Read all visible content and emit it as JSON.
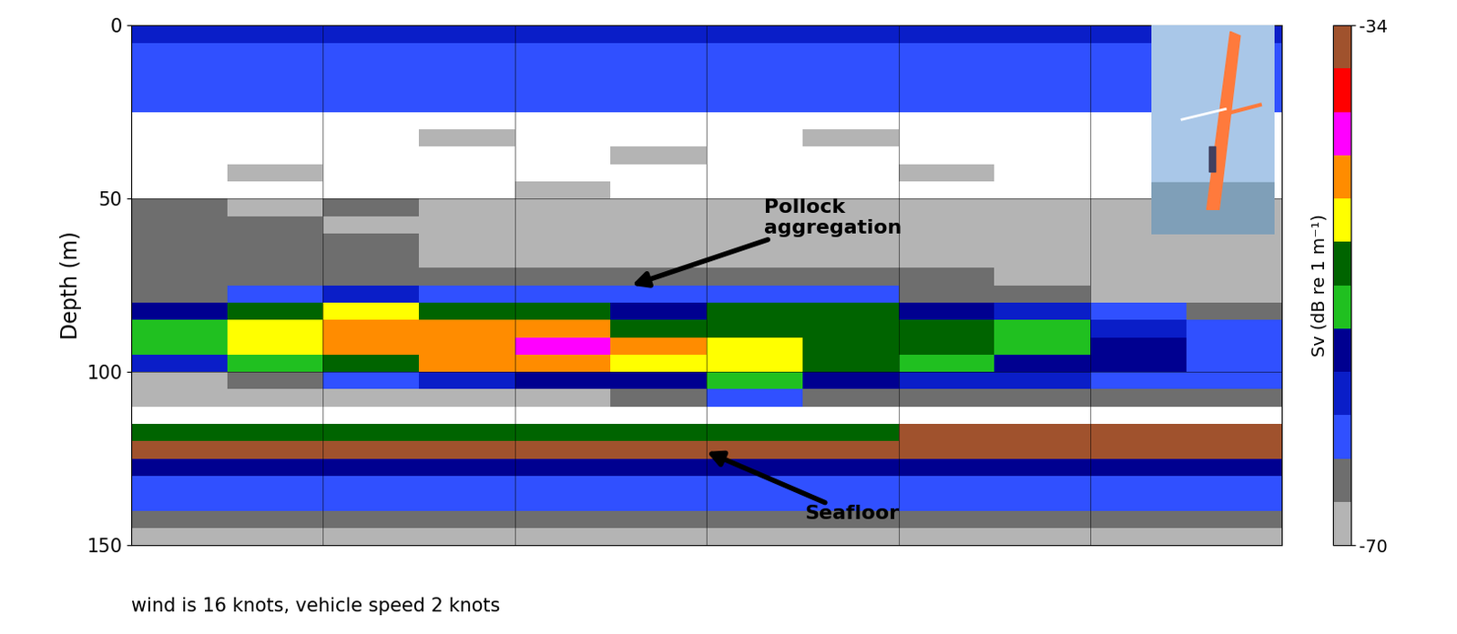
{
  "chart_data": {
    "type": "heatmap",
    "ylabel": "Depth (m)",
    "ylim": [
      150,
      0
    ],
    "yticks": [
      0,
      50,
      100,
      150
    ],
    "grid": true,
    "tick_labels": "y",
    "annotations": [
      "Pollock\naggregation",
      "Seafloor"
    ],
    "caption": "wind is 16 knots, vehicle speed 2 knots",
    "depth_bins": [
      0,
      5,
      10,
      15,
      20,
      25,
      30,
      35,
      40,
      45,
      50,
      55,
      60,
      65,
      70,
      75,
      80,
      85,
      90,
      95,
      100,
      105,
      110,
      115,
      120,
      125,
      130,
      135,
      140,
      145,
      150
    ],
    "cells": [
      [
        -60,
        -60,
        -60,
        -60,
        -60,
        -60,
        -60,
        -60,
        -60,
        -60,
        -60,
        -60
      ],
      [
        -62,
        -62,
        -62,
        -62,
        -62,
        -62,
        -62,
        -62,
        -62,
        -62,
        -62,
        -62
      ],
      [
        -62,
        -62,
        -62,
        -62,
        -62,
        -62,
        -62,
        -62,
        -62,
        -62,
        -62,
        -62
      ],
      [
        -63,
        -63,
        -63,
        -63,
        -63,
        -63,
        -63,
        -63,
        -63,
        -63,
        -63,
        -63
      ],
      [
        -64,
        -64,
        -64,
        -64,
        -64,
        -64,
        -64,
        -64,
        -64,
        -64,
        -64,
        -64
      ],
      [
        -71,
        -71,
        -71,
        -71,
        -71,
        -71,
        -71,
        -71,
        -71,
        -71,
        -71,
        -71
      ],
      [
        -71,
        -71,
        -71,
        -68,
        -71,
        -71,
        -71,
        -68,
        -71,
        -71,
        -71,
        -71
      ],
      [
        -71,
        -71,
        -71,
        -71,
        -71,
        -68,
        -71,
        -71,
        -71,
        -71,
        -71,
        -71
      ],
      [
        -71,
        -68,
        -71,
        -71,
        -71,
        -71,
        -71,
        -71,
        -68,
        -71,
        -71,
        -71
      ],
      [
        -71,
        -71,
        -71,
        -71,
        -68,
        -71,
        -71,
        -71,
        -71,
        -71,
        -71,
        -71
      ],
      [
        -66,
        -68,
        -66,
        -70,
        -70,
        -70,
        -70,
        -70,
        -70,
        -70,
        -70,
        -70
      ],
      [
        -66,
        -66,
        -68,
        -70,
        -70,
        -70,
        -70,
        -70,
        -70,
        -70,
        -70,
        -70
      ],
      [
        -66,
        -66,
        -66,
        -70,
        -70,
        -70,
        -70,
        -70,
        -70,
        -70,
        -70,
        -70
      ],
      [
        -66,
        -66,
        -66,
        -68,
        -70,
        -70,
        -70,
        -70,
        -70,
        -70,
        -70,
        -70
      ],
      [
        -66,
        -66,
        -66,
        -66,
        -66,
        -66,
        -66,
        -66,
        -66,
        -70,
        -70,
        -70
      ],
      [
        -66,
        -62,
        -60,
        -62,
        -64,
        -64,
        -62,
        -64,
        -66,
        -66,
        -68,
        -70
      ],
      [
        -58,
        -50,
        -48,
        -50,
        -52,
        -58,
        -52,
        -52,
        -58,
        -60,
        -64,
        -66
      ],
      [
        -54,
        -48,
        -46,
        -45,
        -44,
        -50,
        -50,
        -50,
        -52,
        -54,
        -60,
        -64
      ],
      [
        -55,
        -49,
        -46,
        -44,
        -43,
        -46,
        -48,
        -50,
        -52,
        -53,
        -58,
        -62
      ],
      [
        -60,
        -54,
        -50,
        -46,
        -45,
        -47,
        -47,
        -52,
        -54,
        -56,
        -58,
        -62
      ],
      [
        -68,
        -66,
        -64,
        -60,
        -58,
        -56,
        -54,
        -58,
        -60,
        -60,
        -62,
        -64
      ],
      [
        -70,
        -70,
        -70,
        -70,
        -68,
        -66,
        -64,
        -66,
        -66,
        -66,
        -66,
        -66
      ],
      [
        -71,
        -71,
        -71,
        -71,
        -71,
        -71,
        -71,
        -71,
        -71,
        -71,
        -71,
        -71
      ],
      [
        -50,
        -50,
        -50,
        -50,
        -50,
        -50,
        -50,
        -50,
        -36,
        -36,
        -36,
        -36
      ],
      [
        -34,
        -34,
        -34,
        -34,
        -34,
        -34,
        -34,
        -34,
        -34,
        -34,
        -34,
        -34
      ],
      [
        -58,
        -58,
        -58,
        -58,
        -58,
        -58,
        -58,
        -58,
        -58,
        -58,
        -58,
        -58
      ],
      [
        -62,
        -62,
        -62,
        -62,
        -62,
        -62,
        -62,
        -62,
        -62,
        -62,
        -62,
        -62
      ],
      [
        -64,
        -64,
        -64,
        -64,
        -64,
        -64,
        -64,
        -64,
        -64,
        -64,
        -64,
        -64
      ],
      [
        -66,
        -66,
        -66,
        -66,
        -66,
        -66,
        -66,
        -66,
        -66,
        -66,
        -66,
        -66
      ],
      [
        -68,
        -68,
        -68,
        -68,
        -68,
        -68,
        -68,
        -68,
        -68,
        -68,
        -68,
        -68
      ]
    ],
    "colorbar": {
      "label": "Sv (dB re 1 m⁻¹)",
      "range": [
        -70,
        -34
      ],
      "ticks": [
        -70,
        -34
      ]
    }
  }
}
